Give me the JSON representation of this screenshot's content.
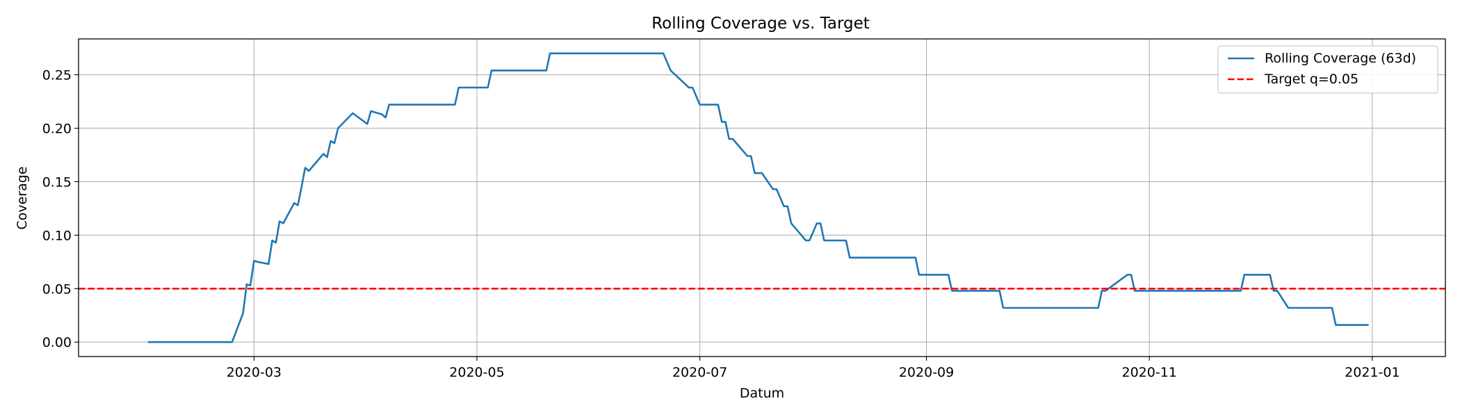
{
  "chart_data": {
    "type": "line",
    "title": "Rolling Coverage vs. Target",
    "xlabel": "Datum",
    "ylabel": "Coverage",
    "xlim": [
      "2020-01-13",
      "2021-01-21"
    ],
    "ylim": [
      -0.0135,
      0.2835
    ],
    "grid": true,
    "legend_position": "top-right",
    "x_ticks": [
      "2020-03",
      "2020-05",
      "2020-07",
      "2020-09",
      "2020-11",
      "2021-01"
    ],
    "y_ticks": [
      "0.00",
      "0.05",
      "0.10",
      "0.15",
      "0.20",
      "0.25"
    ],
    "series": [
      {
        "name": "Rolling Coverage (63d)",
        "color": "#1f77b4",
        "style": "solid",
        "points": [
          [
            "2020-02-01",
            0.0
          ],
          [
            "2020-02-24",
            0.0
          ],
          [
            "2020-02-27",
            0.027
          ],
          [
            "2020-02-28",
            0.054
          ],
          [
            "2020-02-29",
            0.053
          ],
          [
            "2020-03-01",
            0.076
          ],
          [
            "2020-03-02",
            0.075
          ],
          [
            "2020-03-05",
            0.073
          ],
          [
            "2020-03-06",
            0.095
          ],
          [
            "2020-03-07",
            0.093
          ],
          [
            "2020-03-08",
            0.113
          ],
          [
            "2020-03-09",
            0.111
          ],
          [
            "2020-03-12",
            0.13
          ],
          [
            "2020-03-13",
            0.128
          ],
          [
            "2020-03-14",
            0.145
          ],
          [
            "2020-03-15",
            0.163
          ],
          [
            "2020-03-16",
            0.16
          ],
          [
            "2020-03-20",
            0.176
          ],
          [
            "2020-03-21",
            0.173
          ],
          [
            "2020-03-22",
            0.188
          ],
          [
            "2020-03-23",
            0.186
          ],
          [
            "2020-03-24",
            0.2
          ],
          [
            "2020-03-28",
            0.214
          ],
          [
            "2020-04-01",
            0.204
          ],
          [
            "2020-04-02",
            0.216
          ],
          [
            "2020-04-05",
            0.213
          ],
          [
            "2020-04-06",
            0.21
          ],
          [
            "2020-04-07",
            0.222
          ],
          [
            "2020-04-25",
            0.222
          ],
          [
            "2020-04-26",
            0.238
          ],
          [
            "2020-05-04",
            0.238
          ],
          [
            "2020-05-05",
            0.254
          ],
          [
            "2020-05-20",
            0.254
          ],
          [
            "2020-05-21",
            0.27
          ],
          [
            "2020-06-21",
            0.27
          ],
          [
            "2020-06-23",
            0.254
          ],
          [
            "2020-06-28",
            0.238
          ],
          [
            "2020-06-29",
            0.238
          ],
          [
            "2020-07-01",
            0.222
          ],
          [
            "2020-07-06",
            0.222
          ],
          [
            "2020-07-07",
            0.206
          ],
          [
            "2020-07-08",
            0.206
          ],
          [
            "2020-07-09",
            0.19
          ],
          [
            "2020-07-10",
            0.19
          ],
          [
            "2020-07-14",
            0.174
          ],
          [
            "2020-07-15",
            0.174
          ],
          [
            "2020-07-16",
            0.158
          ],
          [
            "2020-07-18",
            0.158
          ],
          [
            "2020-07-21",
            0.143
          ],
          [
            "2020-07-22",
            0.143
          ],
          [
            "2020-07-24",
            0.127
          ],
          [
            "2020-07-25",
            0.127
          ],
          [
            "2020-07-26",
            0.111
          ],
          [
            "2020-07-30",
            0.095
          ],
          [
            "2020-07-31",
            0.095
          ],
          [
            "2020-08-02",
            0.111
          ],
          [
            "2020-08-03",
            0.111
          ],
          [
            "2020-08-04",
            0.095
          ],
          [
            "2020-08-10",
            0.095
          ],
          [
            "2020-08-11",
            0.079
          ],
          [
            "2020-08-29",
            0.079
          ],
          [
            "2020-08-30",
            0.063
          ],
          [
            "2020-09-07",
            0.063
          ],
          [
            "2020-09-08",
            0.048
          ],
          [
            "2020-09-21",
            0.048
          ],
          [
            "2020-09-22",
            0.032
          ],
          [
            "2020-10-18",
            0.032
          ],
          [
            "2020-10-19",
            0.048
          ],
          [
            "2020-10-20",
            0.048
          ],
          [
            "2020-10-26",
            0.063
          ],
          [
            "2020-10-27",
            0.063
          ],
          [
            "2020-10-28",
            0.048
          ],
          [
            "2020-11-26",
            0.048
          ],
          [
            "2020-11-27",
            0.063
          ],
          [
            "2020-12-04",
            0.063
          ],
          [
            "2020-12-05",
            0.048
          ],
          [
            "2020-12-06",
            0.048
          ],
          [
            "2020-12-09",
            0.032
          ],
          [
            "2020-12-21",
            0.032
          ],
          [
            "2020-12-22",
            0.016
          ],
          [
            "2020-12-31",
            0.016
          ]
        ]
      },
      {
        "name": "Target q=0.05",
        "color": "#ff0000",
        "style": "dashed",
        "constant": 0.05
      }
    ]
  }
}
